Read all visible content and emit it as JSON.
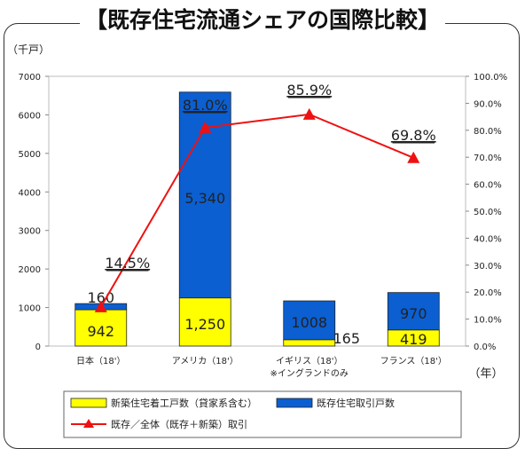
{
  "title": "【既存住宅流通シェアの国際比較】",
  "unit_left": "（千戸）",
  "unit_x": "（年）",
  "colors": {
    "new": "#ffff00",
    "existing": "#0b5fd1",
    "line": "#ee1111",
    "bar_edge": "#222222"
  },
  "chart_data": {
    "type": "bar",
    "stacked": true,
    "categories": [
      "日本（18'）",
      "アメリカ（18'）",
      "イギリス（18'）",
      "フランス（18'）"
    ],
    "category_notes": [
      "",
      "",
      "※イングランドのみ",
      ""
    ],
    "series": [
      {
        "name": "新築住宅着工戸数（貸家系含む）",
        "values": [
          942,
          1250,
          165,
          419
        ],
        "labels": [
          "942",
          "1,250",
          "165",
          "419"
        ]
      },
      {
        "name": "既存住宅取引戸数",
        "values": [
          160,
          5340,
          1008,
          970
        ],
        "labels": [
          "160",
          "5,340",
          "1008",
          "970"
        ]
      }
    ],
    "line_series": {
      "name": "既存／全体（既存＋新築）取引",
      "values": [
        14.5,
        81.0,
        85.9,
        69.8
      ],
      "labels": [
        "14.5%",
        "81.0%",
        "85.9%",
        "69.8%"
      ]
    },
    "ylim": [
      0,
      7000
    ],
    "yticks": [
      "0",
      "1000",
      "2000",
      "3000",
      "4000",
      "5000",
      "6000",
      "7000"
    ],
    "y2lim": [
      0,
      100
    ],
    "y2ticks": [
      "0.0%",
      "10.0%",
      "20.0%",
      "30.0%",
      "40.0%",
      "50.0%",
      "60.0%",
      "70.0%",
      "80.0%",
      "90.0%",
      "100.0%"
    ],
    "legend_position": "bottom"
  }
}
